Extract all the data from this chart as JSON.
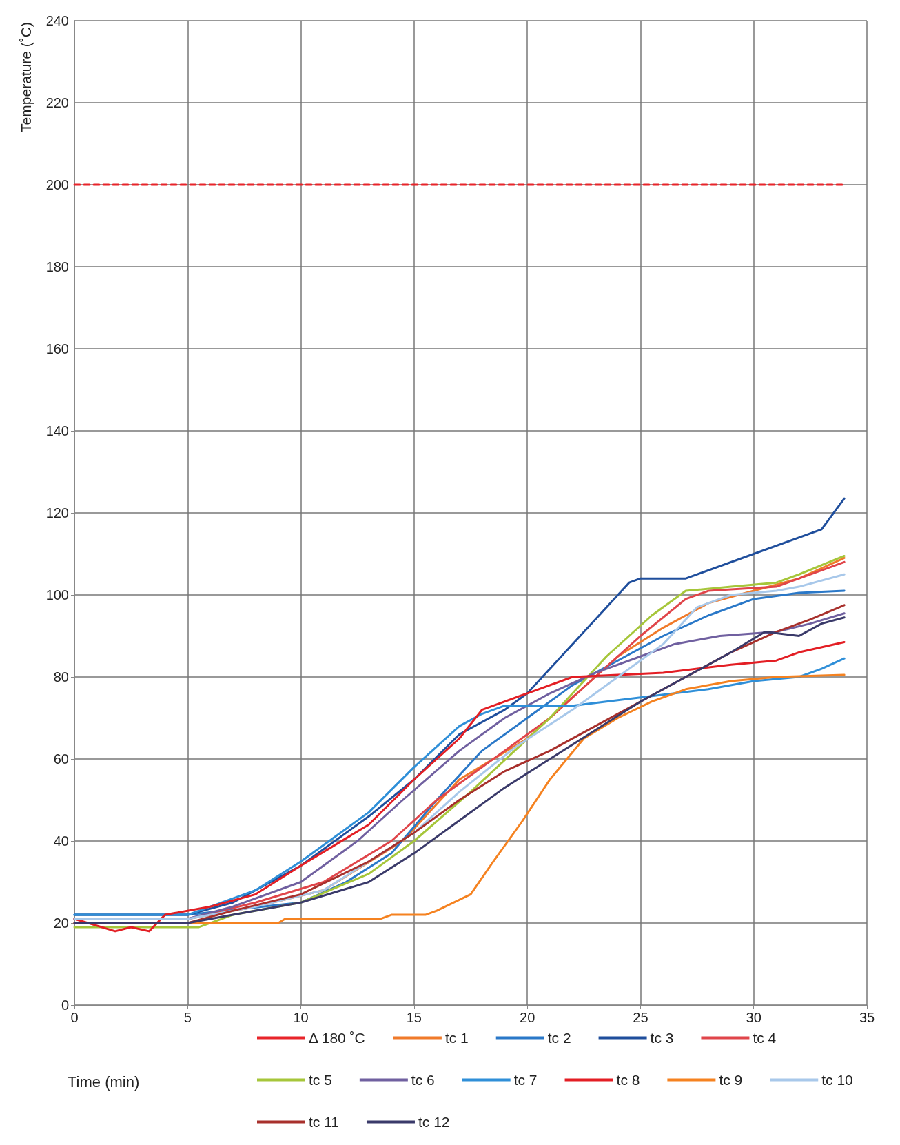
{
  "chart_data": {
    "type": "line",
    "xlabel": "Time (min)",
    "ylabel": "Temperature (˚C)",
    "xlim": [
      0,
      35
    ],
    "xticks": [
      0,
      5,
      10,
      15,
      20,
      25,
      30,
      35
    ],
    "ylim": [
      0,
      240
    ],
    "yticks": [
      0,
      20,
      40,
      60,
      80,
      100,
      120,
      140,
      160,
      180,
      200,
      220,
      240
    ],
    "grid": true,
    "legend": "bottom",
    "marker": "none",
    "line_style": "solid",
    "series": [
      {
        "name": "Δ 180 ˚C",
        "color": "#e8242a",
        "line_style": "dashed",
        "x": [
          0,
          34
        ],
        "values": [
          200,
          200
        ]
      },
      {
        "name": "tc 1",
        "color": "#f07a2a",
        "x": [
          0,
          5,
          8,
          11,
          14.5,
          17,
          20,
          22,
          24,
          26,
          28,
          30,
          32,
          34
        ],
        "values": [
          21,
          21,
          24,
          28,
          40,
          55,
          65,
          75,
          85,
          92,
          98,
          101,
          104,
          109
        ]
      },
      {
        "name": "tc 2",
        "color": "#2a78c8",
        "x": [
          0,
          5,
          10,
          12,
          14,
          16,
          18,
          20,
          22,
          24,
          26,
          28,
          30,
          32,
          34
        ],
        "values": [
          22,
          22,
          25,
          30,
          37,
          50,
          62,
          70,
          78,
          84,
          90,
          95,
          99,
          100.5,
          101
        ]
      },
      {
        "name": "tc 3",
        "color": "#1f4e9c",
        "x": [
          0,
          5,
          7,
          10,
          13,
          15,
          17,
          19,
          20,
          22,
          24.5,
          25,
          27,
          30,
          33,
          34
        ],
        "values": [
          22,
          22,
          25,
          34,
          46,
          55,
          66,
          72,
          76,
          88,
          103,
          104,
          104,
          110,
          116,
          123.5
        ]
      },
      {
        "name": "tc 4",
        "color": "#e0454a",
        "x": [
          0,
          5,
          8,
          11,
          14,
          16,
          19,
          21,
          23,
          25,
          27,
          28,
          31,
          34
        ],
        "values": [
          21,
          21,
          25,
          30,
          40,
          50,
          62,
          70,
          80,
          90,
          99,
          101,
          102,
          108
        ]
      },
      {
        "name": "tc 5",
        "color": "#a6c63a",
        "x": [
          0,
          5.5,
          7,
          10,
          13,
          15,
          17.5,
          21,
          23.5,
          25.5,
          27,
          29,
          31,
          32,
          34
        ],
        "values": [
          19,
          19,
          22,
          25,
          32,
          40,
          52,
          70,
          85,
          95,
          101,
          102,
          103,
          105,
          109.5
        ]
      },
      {
        "name": "tc 6",
        "color": "#7060a0",
        "x": [
          0,
          5,
          7,
          10,
          12.5,
          14.5,
          17,
          19,
          21,
          23,
          25,
          26.5,
          28.5,
          31,
          32.5,
          34
        ],
        "values": [
          21,
          21,
          24,
          30,
          40,
          50,
          62,
          70,
          76,
          81,
          85,
          88,
          90,
          91,
          93,
          95.5
        ]
      },
      {
        "name": "tc 7",
        "color": "#2f8fd8",
        "x": [
          0,
          5,
          8,
          10,
          13,
          15,
          17,
          18,
          19,
          22,
          25,
          28,
          30,
          32,
          33,
          34
        ],
        "values": [
          22,
          22,
          28,
          35,
          47,
          58,
          68,
          71,
          73,
          73,
          75,
          77,
          79,
          80,
          82,
          84.5
        ]
      },
      {
        "name": "tc 8",
        "color": "#e31e24",
        "x": [
          0,
          1.8,
          2.5,
          3.3,
          4,
          6,
          8,
          10,
          13,
          15,
          17,
          18,
          20,
          22,
          26,
          29,
          31,
          32,
          34
        ],
        "values": [
          21,
          18,
          19,
          18,
          22,
          24,
          27,
          34,
          44,
          55,
          65,
          72,
          76,
          80,
          81,
          83,
          84,
          86,
          88.5
        ]
      },
      {
        "name": "tc 9",
        "color": "#f58220",
        "x": [
          0,
          9,
          9.3,
          13.5,
          14,
          15.5,
          16,
          17.5,
          18.5,
          19.8,
          21,
          22.5,
          24,
          25.5,
          27,
          29,
          31,
          34
        ],
        "values": [
          20,
          20,
          21,
          21,
          22,
          22,
          23,
          27,
          35,
          45,
          55,
          65,
          70,
          74,
          77,
          79,
          80,
          80.5
        ]
      },
      {
        "name": "tc 10",
        "color": "#a8c8ea",
        "x": [
          0,
          5,
          8,
          11,
          13,
          15,
          17,
          19.5,
          22,
          24,
          26,
          27.5,
          29,
          31,
          32,
          34
        ],
        "values": [
          21,
          21,
          24,
          28,
          35,
          42,
          52,
          63,
          72,
          80,
          88,
          97,
          100,
          101,
          102,
          105
        ]
      },
      {
        "name": "tc 11",
        "color": "#a8302c",
        "x": [
          0,
          5,
          7,
          10,
          13,
          15,
          17,
          19,
          21,
          23,
          25,
          27,
          29,
          31,
          32.5,
          34
        ],
        "values": [
          20,
          20,
          23,
          27,
          35,
          42,
          50,
          57,
          62,
          68,
          74,
          80,
          86,
          91,
          94,
          97.5
        ]
      },
      {
        "name": "tc 12",
        "color": "#3a3a6a",
        "x": [
          0,
          5,
          7,
          10,
          13,
          15,
          17,
          19,
          21,
          23,
          25,
          27,
          29,
          30.5,
          32,
          33,
          34
        ],
        "values": [
          20,
          20,
          22,
          25,
          30,
          37,
          45,
          53,
          60,
          67,
          74,
          80,
          86,
          91,
          90,
          93,
          94.5
        ]
      }
    ]
  }
}
